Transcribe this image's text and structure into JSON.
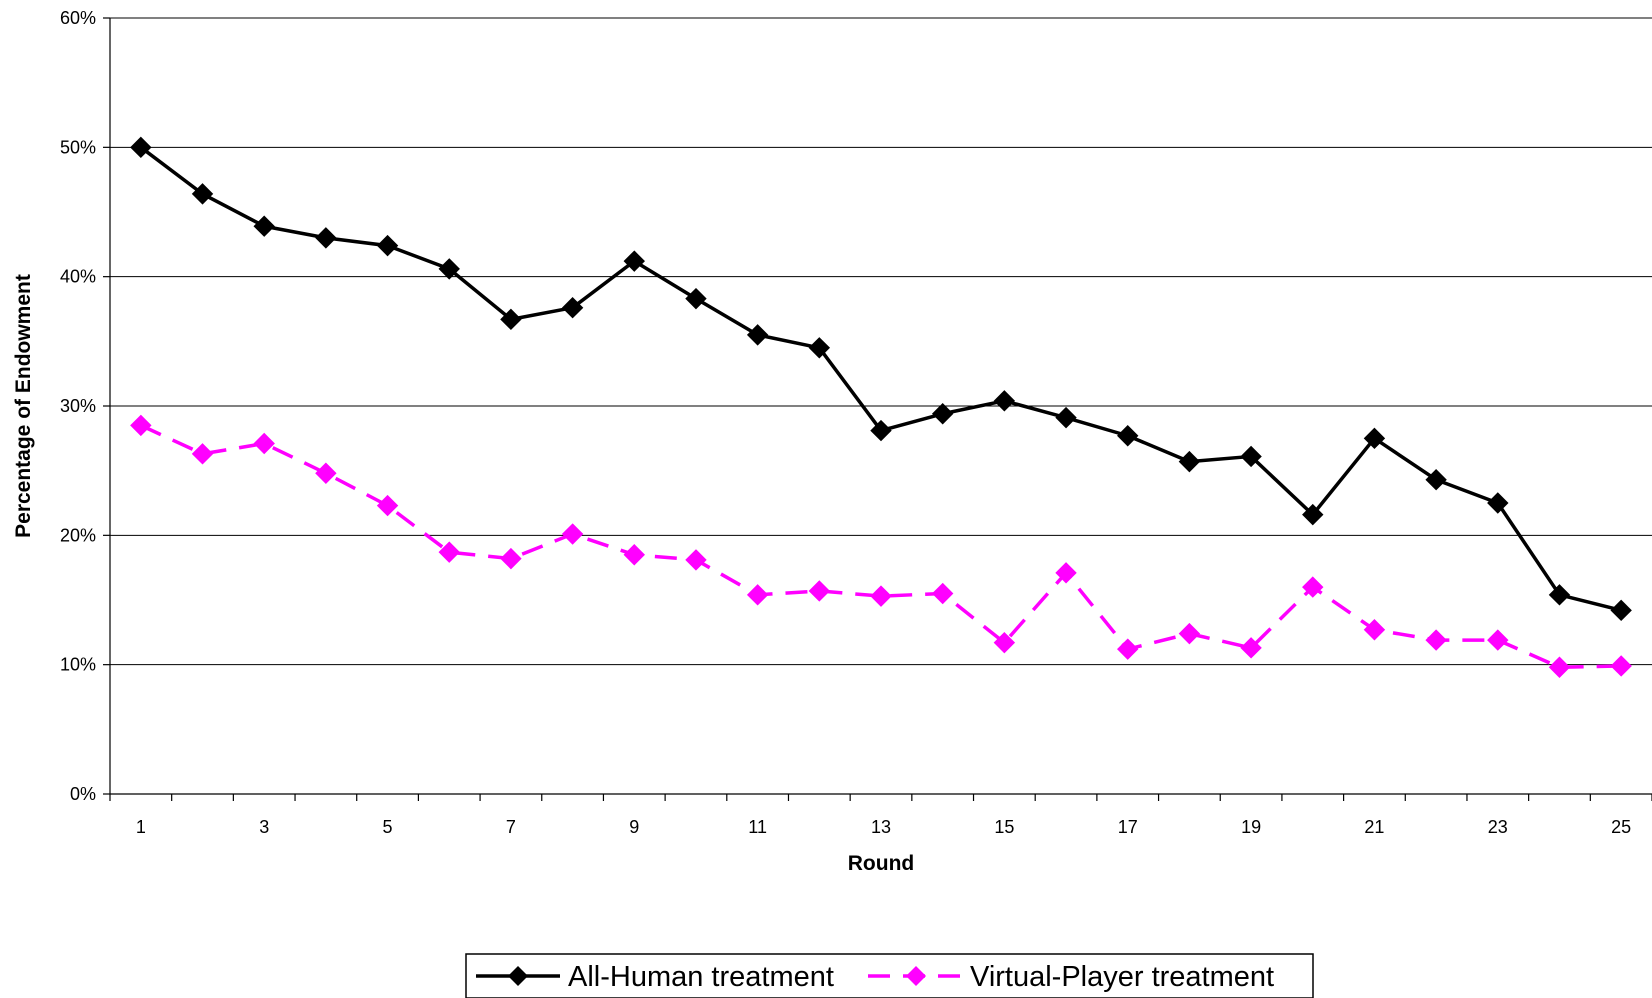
{
  "chart_data": {
    "type": "line",
    "title": "",
    "xlabel": "Round",
    "ylabel": "Percentage of Endowment",
    "x": [
      1,
      2,
      3,
      4,
      5,
      6,
      7,
      8,
      9,
      10,
      11,
      12,
      13,
      14,
      15,
      16,
      17,
      18,
      19,
      20,
      21,
      22,
      23,
      24,
      25
    ],
    "x_tick_labels": [
      "1",
      "3",
      "5",
      "7",
      "9",
      "11",
      "13",
      "15",
      "17",
      "19",
      "21",
      "23",
      "25"
    ],
    "x_tick_values": [
      1,
      3,
      5,
      7,
      9,
      11,
      13,
      15,
      17,
      19,
      21,
      23,
      25
    ],
    "xlim": [
      0.5,
      25.5
    ],
    "ylim": [
      0,
      60
    ],
    "y_ticks": [
      0,
      10,
      20,
      30,
      40,
      50,
      60
    ],
    "y_tick_labels": [
      "0%",
      "10%",
      "20%",
      "30%",
      "40%",
      "50%",
      "60%"
    ],
    "grid": "horizontal",
    "legend_position": "bottom",
    "series": [
      {
        "name": "All-Human treatment",
        "color": "#000000",
        "line_style": "solid",
        "marker": "diamond",
        "values": [
          50.0,
          46.4,
          43.9,
          43.0,
          42.4,
          40.6,
          36.7,
          37.6,
          41.2,
          38.3,
          35.5,
          34.5,
          28.1,
          29.4,
          30.4,
          29.1,
          27.7,
          25.7,
          26.1,
          21.6,
          27.5,
          24.3,
          22.5,
          15.4,
          14.2
        ]
      },
      {
        "name": "Virtual-Player treatment",
        "color": "#ff00ff",
        "line_style": "dashed",
        "marker": "diamond",
        "values": [
          28.5,
          26.3,
          27.1,
          24.8,
          22.3,
          18.7,
          18.2,
          20.1,
          18.5,
          18.1,
          15.4,
          15.7,
          15.3,
          15.5,
          11.7,
          17.1,
          11.2,
          12.4,
          11.3,
          16.0,
          12.7,
          11.9,
          11.9,
          9.8,
          9.9
        ]
      }
    ]
  }
}
